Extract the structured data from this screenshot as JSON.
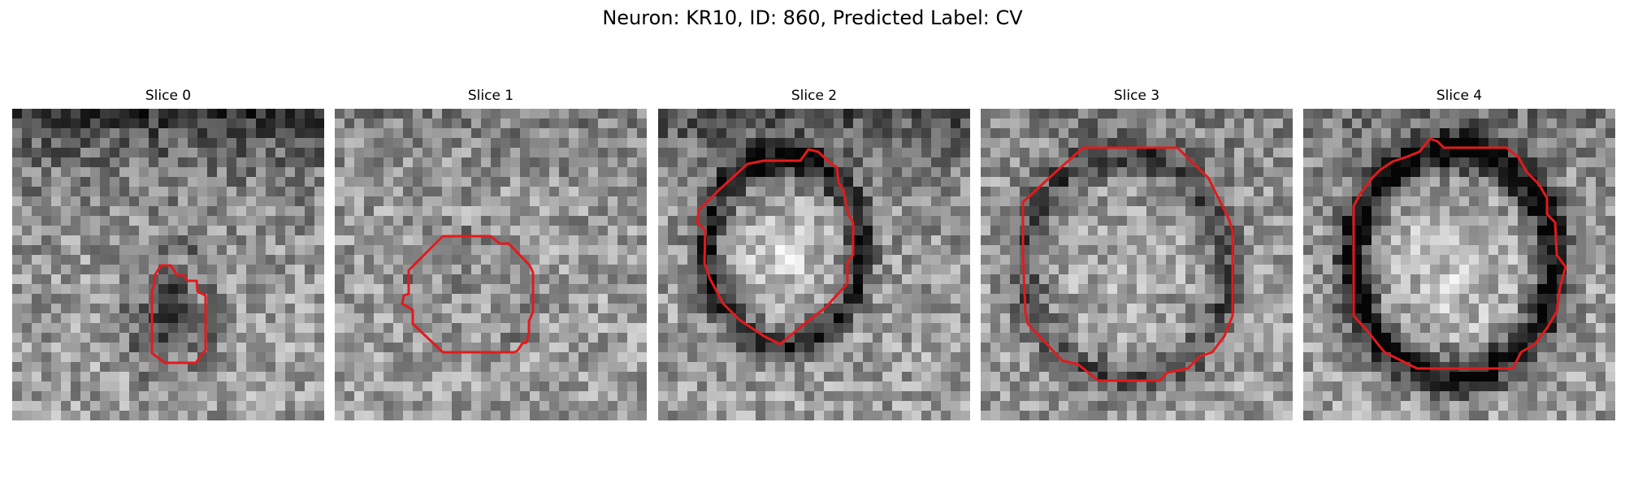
{
  "title": "Neuron: KR10, ID: 860, Predicted Label: CV",
  "contour_color": "#e31a1c",
  "panels": [
    {
      "label": "Slice 0"
    },
    {
      "label": "Slice 1"
    },
    {
      "label": "Slice 2"
    },
    {
      "label": "Slice 3"
    },
    {
      "label": "Slice 4"
    }
  ]
}
